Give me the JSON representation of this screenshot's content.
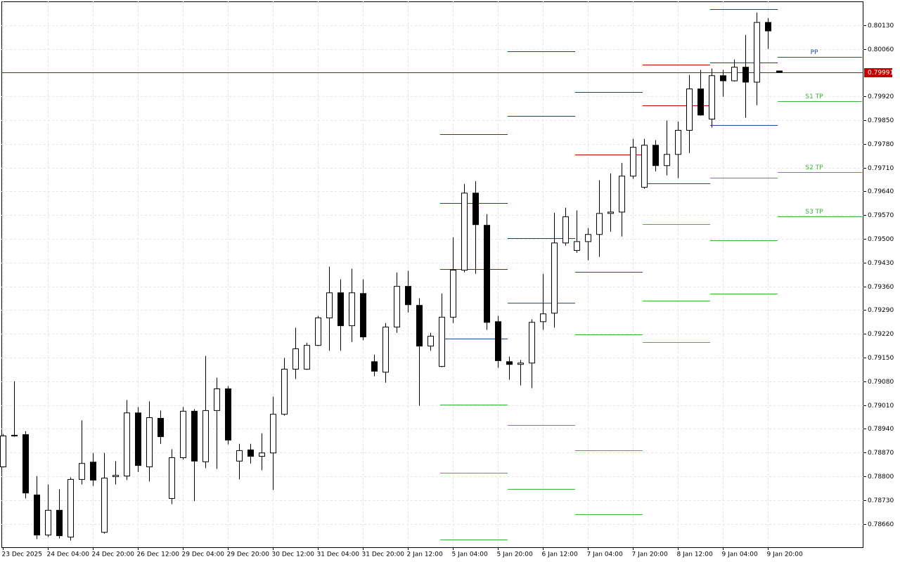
{
  "chart_data": {
    "type": "candlestick",
    "categories": [
      "23 Dec 2025",
      null,
      null,
      null,
      "24 Dec 04:00",
      null,
      null,
      null,
      "24 Dec 20:00",
      null,
      null,
      null,
      "26 Dec 12:00",
      null,
      null,
      null,
      "29 Dec 04:00",
      null,
      null,
      null,
      "29 Dec 20:00",
      null,
      null,
      null,
      "30 Dec 12:00",
      null,
      null,
      null,
      "31 Dec 04:00",
      null,
      null,
      null,
      "31 Dec 20:00",
      null,
      null,
      null,
      "2 Jan 12:00",
      null,
      null,
      null,
      "5 Jan 04:00",
      null,
      null,
      null,
      "5 Jan 20:00",
      null,
      null,
      null,
      "6 Jan 12:00",
      null,
      null,
      null,
      "7 Jan 04:00",
      null,
      null,
      null,
      "7 Jan 20:00",
      null,
      null,
      null,
      "8 Jan 12:00",
      null,
      null,
      null,
      "9 Jan 04:00",
      null,
      null,
      null,
      "9 Jan 20:00",
      null
    ],
    "open": [
      0.78828,
      0.78921,
      0.78923,
      0.78745,
      0.78627,
      0.787,
      0.78621,
      0.78791,
      0.78842,
      0.78635,
      0.78799,
      0.78801,
      0.78987,
      0.78828,
      0.78971,
      0.78735,
      0.78855,
      0.78992,
      0.78843,
      0.78994,
      0.79058,
      0.78845,
      0.78878,
      0.78859,
      0.78869,
      0.78983,
      0.79116,
      0.79116,
      0.79186,
      0.79267,
      0.79341,
      0.79244,
      0.79339,
      0.79138,
      0.79107,
      0.7924,
      0.7936,
      0.79304,
      0.79184,
      0.79124,
      0.79269,
      0.79408,
      0.79635,
      0.7954,
      0.79256,
      0.79138,
      0.7913,
      0.79134,
      0.79256,
      0.79281,
      0.79488,
      0.79466,
      0.79492,
      0.79513,
      0.79575,
      0.79579,
      0.79685,
      0.79652,
      0.79776,
      0.79716,
      0.79749,
      0.7982,
      0.79942,
      0.79853,
      0.79981,
      0.79966,
      0.80006,
      0.79962,
      0.80138,
      0.79995
    ],
    "high": [
      0.78925,
      0.7908,
      0.78933,
      0.78801,
      0.78776,
      0.78762,
      0.78797,
      0.78965,
      0.78869,
      0.78869,
      0.78845,
      0.79025,
      0.79004,
      0.79021,
      0.78994,
      0.7888,
      0.79004,
      0.78998,
      0.79155,
      0.79091,
      0.79066,
      0.78896,
      0.78896,
      0.78927,
      0.79035,
      0.79149,
      0.79238,
      0.79194,
      0.79273,
      0.79418,
      0.79381,
      0.79412,
      0.79381,
      0.79159,
      0.79252,
      0.79401,
      0.79406,
      0.79325,
      0.79223,
      0.79339,
      0.79505,
      0.79662,
      0.7967,
      0.79573,
      0.79273,
      0.79153,
      0.79143,
      0.79263,
      0.79397,
      0.79577,
      0.79592,
      0.79584,
      0.79532,
      0.79673,
      0.79693,
      0.79724,
      0.79795,
      0.79795,
      0.79791,
      0.79849,
      0.79846,
      0.79983,
      0.79998,
      0.80002,
      0.79998,
      0.80029,
      0.80101,
      0.80167,
      0.80151,
      0.79995
    ],
    "low": [
      0.78826,
      0.78917,
      0.78735,
      0.78615,
      0.78621,
      0.78617,
      0.78611,
      0.78776,
      0.78772,
      0.78631,
      0.78776,
      0.78789,
      0.78813,
      0.78785,
      0.78896,
      0.78718,
      0.78849,
      0.78727,
      0.78824,
      0.78822,
      0.78894,
      0.78791,
      0.78838,
      0.78818,
      0.7876,
      0.78979,
      0.79087,
      0.79114,
      0.79184,
      0.7917,
      0.7917,
      0.79196,
      0.79201,
      0.79095,
      0.79076,
      0.79223,
      0.79283,
      0.79008,
      0.7917,
      0.79122,
      0.79252,
      0.79401,
      0.79397,
      0.79232,
      0.7912,
      0.79085,
      0.79068,
      0.7906,
      0.79232,
      0.79238,
      0.7948,
      0.79459,
      0.79437,
      0.79447,
      0.79521,
      0.79507,
      0.79677,
      0.79648,
      0.79699,
      0.79687,
      0.79679,
      0.79753,
      0.79863,
      0.79828,
      0.79919,
      0.79964,
      0.79857,
      0.79894,
      0.8006,
      0.79989
    ],
    "close": [
      0.78919,
      0.78919,
      0.78751,
      0.78627,
      0.787,
      0.78625,
      0.78791,
      0.78838,
      0.78789,
      0.78795,
      0.78803,
      0.78987,
      0.78832,
      0.78973,
      0.78917,
      0.78855,
      0.78992,
      0.78845,
      0.78994,
      0.79058,
      0.78907,
      0.78876,
      0.78859,
      0.78869,
      0.78983,
      0.79116,
      0.79176,
      0.79186,
      0.79267,
      0.79341,
      0.79244,
      0.79341,
      0.79211,
      0.7911,
      0.7924,
      0.7936,
      0.79306,
      0.79184,
      0.79213,
      0.79269,
      0.79408,
      0.79635,
      0.79542,
      0.79254,
      0.79141,
      0.7913,
      0.79134,
      0.79254,
      0.79279,
      0.79488,
      0.79565,
      0.79492,
      0.79513,
      0.79575,
      0.79579,
      0.79685,
      0.7977,
      0.79776,
      0.79716,
      0.79749,
      0.7982,
      0.79942,
      0.79865,
      0.79981,
      0.79966,
      0.80006,
      0.79962,
      0.80138,
      0.80113,
      0.79991
    ],
    "up_color": "#ffffff",
    "down_color": "#000000",
    "ylim": [
      0.78591,
      0.802
    ],
    "yticks": [
      {
        "value": 0.7866,
        "label": "0.78660"
      },
      {
        "value": 0.7873,
        "label": "0.78730"
      },
      {
        "value": 0.788,
        "label": "0.78800"
      },
      {
        "value": 0.7887,
        "label": "0.78870"
      },
      {
        "value": 0.7894,
        "label": "0.78940"
      },
      {
        "value": 0.7901,
        "label": "0.79010"
      },
      {
        "value": 0.7908,
        "label": "0.79080"
      },
      {
        "value": 0.7915,
        "label": "0.79150"
      },
      {
        "value": 0.7922,
        "label": "0.79220"
      },
      {
        "value": 0.7929,
        "label": "0.79290"
      },
      {
        "value": 0.7936,
        "label": "0.79360"
      },
      {
        "value": 0.7943,
        "label": "0.79430"
      },
      {
        "value": 0.795,
        "label": "0.79500"
      },
      {
        "value": 0.7957,
        "label": "0.79570"
      },
      {
        "value": 0.7964,
        "label": "0.79640"
      },
      {
        "value": 0.7971,
        "label": "0.79710"
      },
      {
        "value": 0.7978,
        "label": "0.79780"
      },
      {
        "value": 0.7985,
        "label": "0.79850"
      },
      {
        "value": 0.7992,
        "label": "0.79920"
      },
      {
        "value": 0.8006,
        "label": "0.80060"
      },
      {
        "value": 0.8013,
        "label": "0.80130"
      }
    ],
    "grid": true,
    "current_price": 0.79991,
    "current_price_color": "#c00000",
    "resistance_color": "#c00000",
    "pivot_color": "#1f4e9c",
    "support_color": "#3cb43c",
    "pivots": [
      {
        "resistance": [
          0.79809,
          0.79606,
          0.7941
        ],
        "pivot": 0.79207,
        "support": [
          0.79012,
          0.78811,
          0.78613
        ]
      },
      {
        "resistance": [
          0.80053,
          0.79863,
          0.79503
        ],
        "pivot": 0.79312,
        "support": [
          0.78952,
          0.78762
        ]
      },
      {
        "resistance": [
          0.79933,
          0.79749
        ],
        "pivot": 0.79403,
        "support": [
          0.79219,
          0.78876,
          0.78689
        ]
      },
      {
        "resistance": [
          0.80014,
          0.79894
        ],
        "pivot": 0.79664,
        "support": [
          0.79544,
          0.79317,
          0.79196
        ]
      },
      {
        "resistance": [
          0.80178,
          0.8002
        ],
        "pivot": 0.79836,
        "support": [
          0.79681,
          0.79495,
          0.79339
        ]
      },
      {
        "resistance": [],
        "pivot": 0.80037,
        "pivot_label": "PP",
        "support": [
          0.79906,
          0.79697,
          0.79567
        ],
        "support_labels": [
          "S1 TP",
          "S2 TP",
          "S3 TP"
        ]
      }
    ]
  }
}
